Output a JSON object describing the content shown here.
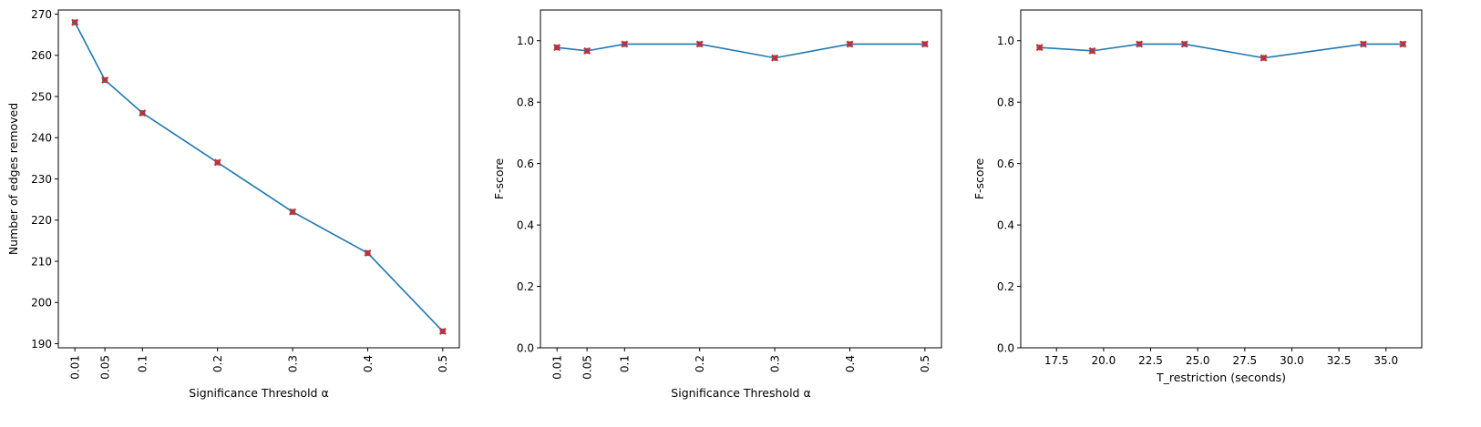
{
  "chart_data": [
    {
      "type": "line",
      "xlabel": "Significance Threshold α",
      "ylabel": "Number of edges removed",
      "x": [
        0.01,
        0.05,
        0.1,
        0.2,
        0.3,
        0.4,
        0.5
      ],
      "x_tick_labels": [
        "0.01",
        "0.05",
        "0.1",
        "0.2",
        "0.3",
        "0.4",
        "0.5"
      ],
      "x_tick_rotation": "vertical",
      "y_ticks": [
        190,
        200,
        210,
        220,
        230,
        240,
        250,
        260,
        270
      ],
      "ylim": [
        189,
        271
      ],
      "series": [
        {
          "values": [
            268,
            254,
            246,
            234,
            222,
            212,
            193
          ]
        }
      ],
      "colors": {
        "line": "#1f77b4",
        "marker": "#d62728"
      },
      "grid": false
    },
    {
      "type": "line",
      "xlabel": "Significance Threshold α",
      "ylabel": "F-score",
      "x": [
        0.01,
        0.05,
        0.1,
        0.2,
        0.3,
        0.4,
        0.5
      ],
      "x_tick_labels": [
        "0.01",
        "0.05",
        "0.1",
        "0.2",
        "0.3",
        "0.4",
        "0.5"
      ],
      "x_tick_rotation": "vertical",
      "y_ticks": [
        0.0,
        0.2,
        0.4,
        0.6,
        0.8,
        1.0
      ],
      "ylim": [
        0,
        1.1
      ],
      "series": [
        {
          "values": [
            0.978,
            0.967,
            0.989,
            0.989,
            0.944,
            0.989,
            0.989
          ]
        }
      ],
      "colors": {
        "line": "#1f77b4",
        "marker": "#d62728"
      },
      "grid": false
    },
    {
      "type": "line",
      "xlabel": "T_restriction (seconds)",
      "ylabel": "F-score",
      "x": [
        16.6,
        19.4,
        21.9,
        24.3,
        28.5,
        33.8,
        35.9
      ],
      "xlim": [
        15.6,
        36.9
      ],
      "x_tick_values": [
        17.5,
        20.0,
        22.5,
        25.0,
        27.5,
        30.0,
        32.5,
        35.0
      ],
      "x_tick_labels": [
        "17.5",
        "20.0",
        "22.5",
        "25.0",
        "27.5",
        "30.0",
        "32.5",
        "35.0"
      ],
      "x_tick_rotation": "horizontal",
      "y_ticks": [
        0.0,
        0.2,
        0.4,
        0.6,
        0.8,
        1.0
      ],
      "ylim": [
        0,
        1.1
      ],
      "series": [
        {
          "values": [
            0.978,
            0.967,
            0.989,
            0.989,
            0.944,
            0.989,
            0.989
          ]
        }
      ],
      "colors": {
        "line": "#1f77b4",
        "marker": "#d62728"
      },
      "grid": false
    }
  ]
}
